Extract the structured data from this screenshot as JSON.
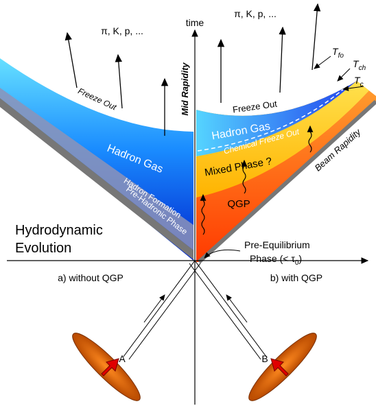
{
  "axes": {
    "time": "time",
    "mid_rapidity": "Mid Rapidity"
  },
  "left_panel": {
    "particles": "π, K, p, ...",
    "freeze_out": "Freeze Out",
    "hadron_gas": "Hadron Gas",
    "hadron_formation": "Hadron Formation",
    "pre_hadronic": "Pre-Hadronic Phase",
    "evolution": [
      "Hydrodynamic",
      "Evolution"
    ],
    "caption": "a) without QGP"
  },
  "right_panel": {
    "particles": "π, K, p, ...",
    "freeze_out": "Freeze Out",
    "hadron_gas": "Hadron Gas",
    "chemical_freeze_out": "Chemical Freeze Out",
    "mixed_phase": "Mixed Phase ?",
    "qgp": "QGP",
    "beam_rapidity": "Beam Rapidity",
    "temperatures": [
      {
        "symbol": "T",
        "sub": "fo"
      },
      {
        "symbol": "T",
        "sub": "ch"
      },
      {
        "symbol": "T",
        "sub": "c"
      }
    ],
    "pre_equilibrium": {
      "line1": "Pre-Equilibrium",
      "line2": "Phase (< τ",
      "sub": "0",
      "close": ")"
    },
    "caption": "b) with QGP"
  },
  "nuclei": [
    "A",
    "B"
  ]
}
